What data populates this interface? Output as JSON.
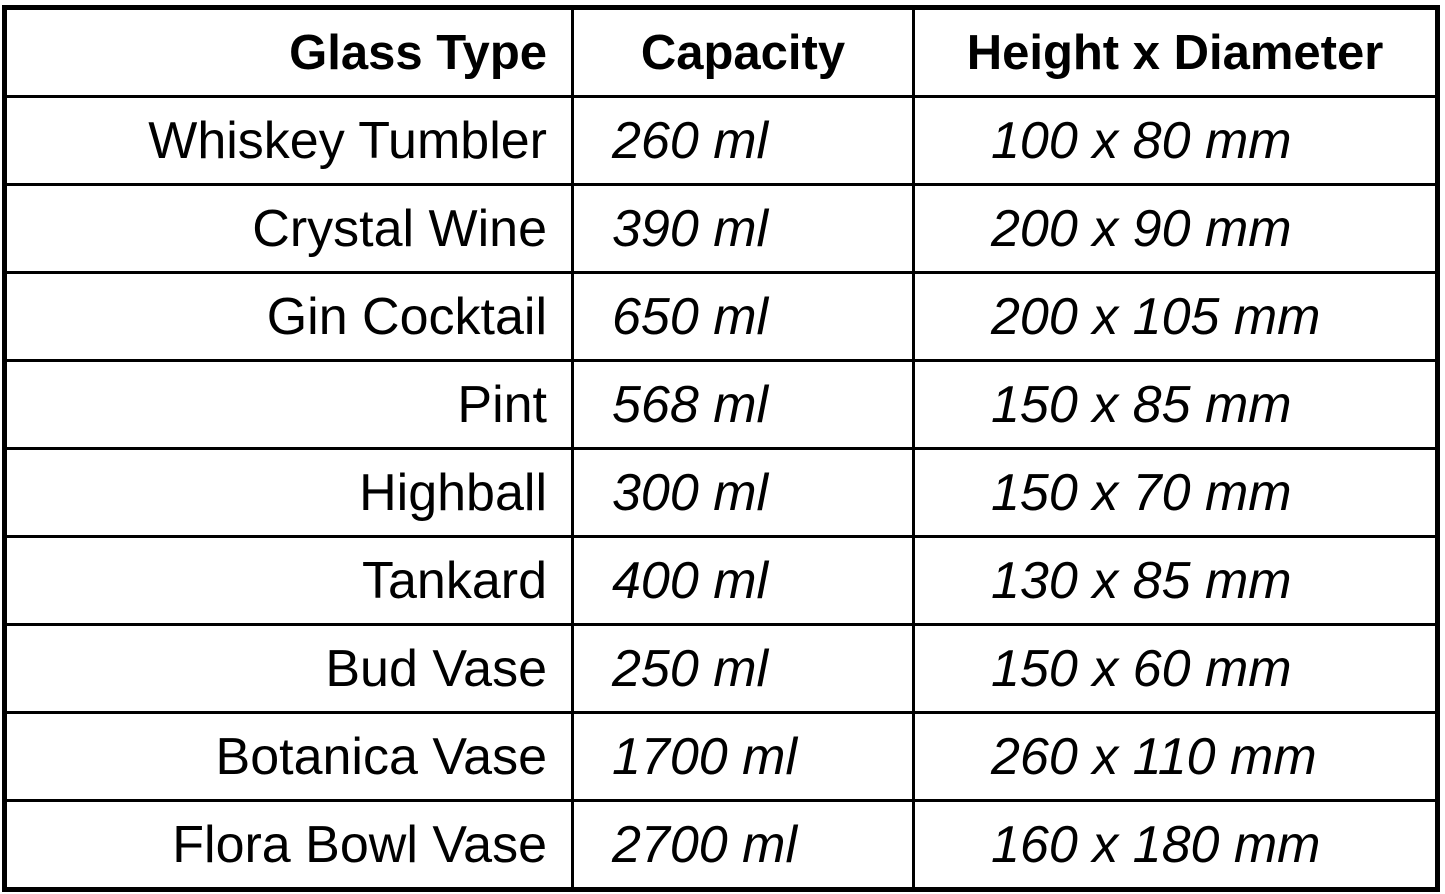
{
  "table": {
    "headers": [
      "Glass Type",
      "Capacity",
      "Height x Diameter"
    ],
    "rows": [
      [
        "Whiskey Tumbler",
        "260 ml",
        "100 x 80 mm"
      ],
      [
        "Crystal Wine",
        "390 ml",
        "200 x 90 mm"
      ],
      [
        "Gin Cocktail",
        "650 ml",
        "200 x 105 mm"
      ],
      [
        "Pint",
        "568 ml",
        "150 x 85 mm"
      ],
      [
        "Highball",
        "300 ml",
        "150 x 70 mm"
      ],
      [
        "Tankard",
        "400 ml",
        "130 x 85 mm"
      ],
      [
        "Bud Vase",
        "250 ml",
        "150 x 60 mm"
      ],
      [
        "Botanica Vase",
        "1700 ml",
        "260 x 110 mm"
      ],
      [
        "Flora Bowl Vase",
        "2700 ml",
        "160 x 180 mm"
      ]
    ]
  }
}
